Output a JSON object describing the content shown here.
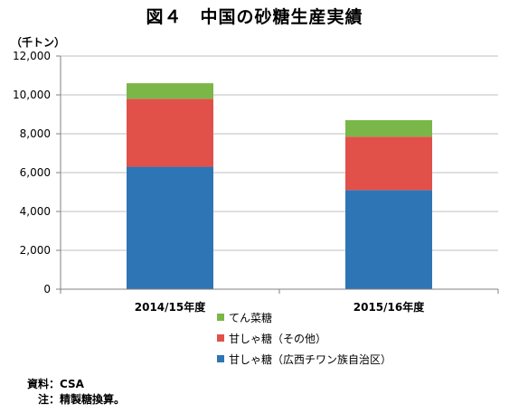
{
  "chart_data": {
    "type": "bar",
    "stacked": true,
    "title": "図４　中国の砂糖生産実績",
    "unit_label": "（千トン）",
    "categories": [
      "2014/15年度",
      "2015/16年度"
    ],
    "series": [
      {
        "name": "甘しゃ糖（広西チワン族自治区）",
        "values": [
          6300,
          5100
        ],
        "color": "#2e75b6"
      },
      {
        "name": "甘しゃ糖（その他）",
        "values": [
          3500,
          2750
        ],
        "color": "#e2504a"
      },
      {
        "name": "てん菜糖",
        "values": [
          800,
          850
        ],
        "color": "#7ab648"
      }
    ],
    "ylim": [
      0,
      12000
    ],
    "yticks": [
      "0",
      "2,000",
      "4,000",
      "6,000",
      "8,000",
      "10,000",
      "12,000"
    ],
    "ytick_values": [
      0,
      2000,
      4000,
      6000,
      8000,
      10000,
      12000
    ],
    "grid": true,
    "legend_placement": "bottom",
    "legend_order": [
      2,
      1,
      0
    ]
  },
  "footnotes": {
    "source": "資料：CSA",
    "note": "　注：精製糖換算。"
  }
}
